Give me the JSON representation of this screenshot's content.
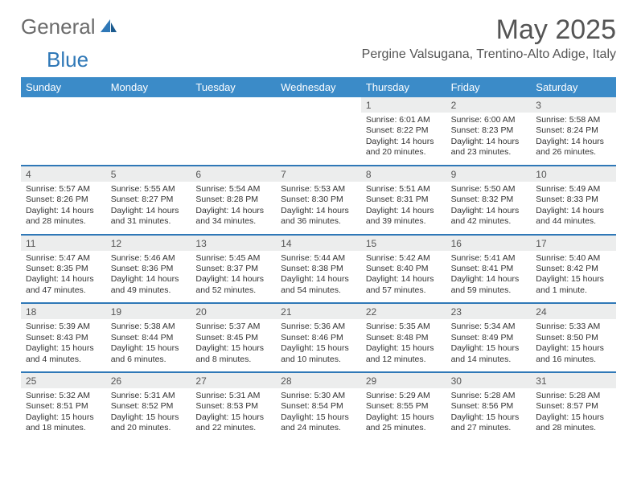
{
  "brand": {
    "part1": "General",
    "part2": "Blue"
  },
  "title": {
    "month": "May 2025",
    "location": "Pergine Valsugana, Trentino-Alto Adige, Italy"
  },
  "colors": {
    "header_bg": "#3b8bc8",
    "divider": "#2f78b7",
    "daynum_bg": "#eceded",
    "text": "#333333",
    "muted": "#555555"
  },
  "dayHeaders": [
    "Sunday",
    "Monday",
    "Tuesday",
    "Wednesday",
    "Thursday",
    "Friday",
    "Saturday"
  ],
  "weeks": [
    [
      {
        "n": "",
        "sr": "",
        "ss": "",
        "dl": ""
      },
      {
        "n": "",
        "sr": "",
        "ss": "",
        "dl": ""
      },
      {
        "n": "",
        "sr": "",
        "ss": "",
        "dl": ""
      },
      {
        "n": "",
        "sr": "",
        "ss": "",
        "dl": ""
      },
      {
        "n": "1",
        "sr": "6:01 AM",
        "ss": "8:22 PM",
        "dl": "14 hours and 20 minutes."
      },
      {
        "n": "2",
        "sr": "6:00 AM",
        "ss": "8:23 PM",
        "dl": "14 hours and 23 minutes."
      },
      {
        "n": "3",
        "sr": "5:58 AM",
        "ss": "8:24 PM",
        "dl": "14 hours and 26 minutes."
      }
    ],
    [
      {
        "n": "4",
        "sr": "5:57 AM",
        "ss": "8:26 PM",
        "dl": "14 hours and 28 minutes."
      },
      {
        "n": "5",
        "sr": "5:55 AM",
        "ss": "8:27 PM",
        "dl": "14 hours and 31 minutes."
      },
      {
        "n": "6",
        "sr": "5:54 AM",
        "ss": "8:28 PM",
        "dl": "14 hours and 34 minutes."
      },
      {
        "n": "7",
        "sr": "5:53 AM",
        "ss": "8:30 PM",
        "dl": "14 hours and 36 minutes."
      },
      {
        "n": "8",
        "sr": "5:51 AM",
        "ss": "8:31 PM",
        "dl": "14 hours and 39 minutes."
      },
      {
        "n": "9",
        "sr": "5:50 AM",
        "ss": "8:32 PM",
        "dl": "14 hours and 42 minutes."
      },
      {
        "n": "10",
        "sr": "5:49 AM",
        "ss": "8:33 PM",
        "dl": "14 hours and 44 minutes."
      }
    ],
    [
      {
        "n": "11",
        "sr": "5:47 AM",
        "ss": "8:35 PM",
        "dl": "14 hours and 47 minutes."
      },
      {
        "n": "12",
        "sr": "5:46 AM",
        "ss": "8:36 PM",
        "dl": "14 hours and 49 minutes."
      },
      {
        "n": "13",
        "sr": "5:45 AM",
        "ss": "8:37 PM",
        "dl": "14 hours and 52 minutes."
      },
      {
        "n": "14",
        "sr": "5:44 AM",
        "ss": "8:38 PM",
        "dl": "14 hours and 54 minutes."
      },
      {
        "n": "15",
        "sr": "5:42 AM",
        "ss": "8:40 PM",
        "dl": "14 hours and 57 minutes."
      },
      {
        "n": "16",
        "sr": "5:41 AM",
        "ss": "8:41 PM",
        "dl": "14 hours and 59 minutes."
      },
      {
        "n": "17",
        "sr": "5:40 AM",
        "ss": "8:42 PM",
        "dl": "15 hours and 1 minute."
      }
    ],
    [
      {
        "n": "18",
        "sr": "5:39 AM",
        "ss": "8:43 PM",
        "dl": "15 hours and 4 minutes."
      },
      {
        "n": "19",
        "sr": "5:38 AM",
        "ss": "8:44 PM",
        "dl": "15 hours and 6 minutes."
      },
      {
        "n": "20",
        "sr": "5:37 AM",
        "ss": "8:45 PM",
        "dl": "15 hours and 8 minutes."
      },
      {
        "n": "21",
        "sr": "5:36 AM",
        "ss": "8:46 PM",
        "dl": "15 hours and 10 minutes."
      },
      {
        "n": "22",
        "sr": "5:35 AM",
        "ss": "8:48 PM",
        "dl": "15 hours and 12 minutes."
      },
      {
        "n": "23",
        "sr": "5:34 AM",
        "ss": "8:49 PM",
        "dl": "15 hours and 14 minutes."
      },
      {
        "n": "24",
        "sr": "5:33 AM",
        "ss": "8:50 PM",
        "dl": "15 hours and 16 minutes."
      }
    ],
    [
      {
        "n": "25",
        "sr": "5:32 AM",
        "ss": "8:51 PM",
        "dl": "15 hours and 18 minutes."
      },
      {
        "n": "26",
        "sr": "5:31 AM",
        "ss": "8:52 PM",
        "dl": "15 hours and 20 minutes."
      },
      {
        "n": "27",
        "sr": "5:31 AM",
        "ss": "8:53 PM",
        "dl": "15 hours and 22 minutes."
      },
      {
        "n": "28",
        "sr": "5:30 AM",
        "ss": "8:54 PM",
        "dl": "15 hours and 24 minutes."
      },
      {
        "n": "29",
        "sr": "5:29 AM",
        "ss": "8:55 PM",
        "dl": "15 hours and 25 minutes."
      },
      {
        "n": "30",
        "sr": "5:28 AM",
        "ss": "8:56 PM",
        "dl": "15 hours and 27 minutes."
      },
      {
        "n": "31",
        "sr": "5:28 AM",
        "ss": "8:57 PM",
        "dl": "15 hours and 28 minutes."
      }
    ]
  ],
  "labels": {
    "sunrise": "Sunrise: ",
    "sunset": "Sunset: ",
    "daylight": "Daylight: "
  }
}
